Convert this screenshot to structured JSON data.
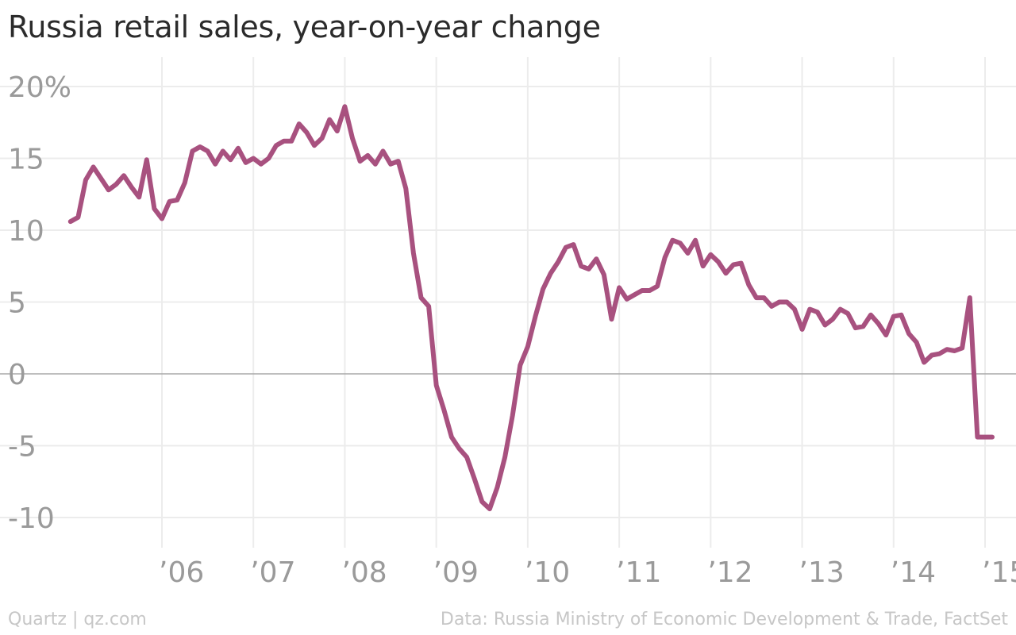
{
  "title": "Russia retail sales, year-on-year change",
  "footer": {
    "credit": "Quartz | qz.com",
    "source": "Data: Russia Ministry of Economic Development & Trade, FactSet"
  },
  "colors": {
    "line": "#a8517f",
    "grid": "#ececec",
    "zero_line": "#a8a8a8",
    "tick_text": "#9a9a9a"
  },
  "chart_data": {
    "type": "line",
    "title": "Russia retail sales, year-on-year change",
    "xlabel": "",
    "ylabel": "",
    "ylim": [
      -12,
      21
    ],
    "xlim": [
      "2005-01",
      "2015-03"
    ],
    "y_ticks": [
      {
        "value": 20,
        "label": "20%"
      },
      {
        "value": 15,
        "label": "15"
      },
      {
        "value": 10,
        "label": "10"
      },
      {
        "value": 5,
        "label": "5"
      },
      {
        "value": 0,
        "label": "0"
      },
      {
        "value": -5,
        "label": "-5"
      },
      {
        "value": -10,
        "label": "-10"
      }
    ],
    "x_ticks": [
      {
        "date": "2006-01",
        "label": "’06"
      },
      {
        "date": "2007-01",
        "label": "’07"
      },
      {
        "date": "2008-01",
        "label": "’08"
      },
      {
        "date": "2009-01",
        "label": "’09"
      },
      {
        "date": "2010-01",
        "label": "’10"
      },
      {
        "date": "2011-01",
        "label": "’11"
      },
      {
        "date": "2012-01",
        "label": "’12"
      },
      {
        "date": "2013-01",
        "label": "’13"
      },
      {
        "date": "2014-01",
        "label": "’14"
      },
      {
        "date": "2015-01",
        "label": "’15"
      }
    ],
    "grid": true,
    "legend": "none",
    "series": [
      {
        "x": [
          "2005-01",
          "2005-02",
          "2005-03",
          "2005-04",
          "2005-05",
          "2005-06",
          "2005-07",
          "2005-08",
          "2005-09",
          "2005-10",
          "2005-11",
          "2005-12",
          "2006-01",
          "2006-02",
          "2006-03",
          "2006-04",
          "2006-05",
          "2006-06",
          "2006-07",
          "2006-08",
          "2006-09",
          "2006-10",
          "2006-11",
          "2006-12",
          "2007-01",
          "2007-02",
          "2007-03",
          "2007-04",
          "2007-05",
          "2007-06",
          "2007-07",
          "2007-08",
          "2007-09",
          "2007-10",
          "2007-11",
          "2007-12",
          "2008-01",
          "2008-02",
          "2008-03",
          "2008-04",
          "2008-05",
          "2008-06",
          "2008-07",
          "2008-08",
          "2008-09",
          "2008-10",
          "2008-11",
          "2008-12",
          "2009-01",
          "2009-02",
          "2009-03",
          "2009-04",
          "2009-05",
          "2009-06",
          "2009-07",
          "2009-08",
          "2009-09",
          "2009-10",
          "2009-11",
          "2009-12",
          "2010-01",
          "2010-02",
          "2010-03",
          "2010-04",
          "2010-05",
          "2010-06",
          "2010-07",
          "2010-08",
          "2010-09",
          "2010-10",
          "2010-11",
          "2010-12",
          "2011-01",
          "2011-02",
          "2011-03",
          "2011-04",
          "2011-05",
          "2011-06",
          "2011-07",
          "2011-08",
          "2011-09",
          "2011-10",
          "2011-11",
          "2011-12",
          "2012-01",
          "2012-02",
          "2012-03",
          "2012-04",
          "2012-05",
          "2012-06",
          "2012-07",
          "2012-08",
          "2012-09",
          "2012-10",
          "2012-11",
          "2012-12",
          "2013-01",
          "2013-02",
          "2013-03",
          "2013-04",
          "2013-05",
          "2013-06",
          "2013-07",
          "2013-08",
          "2013-09",
          "2013-10",
          "2013-11",
          "2013-12",
          "2014-01",
          "2014-02",
          "2014-03",
          "2014-04",
          "2014-05",
          "2014-06",
          "2014-07",
          "2014-08",
          "2014-09",
          "2014-10",
          "2014-11",
          "2014-12",
          "2015-01"
        ],
        "values": [
          10.6,
          10.9,
          13.5,
          14.4,
          13.6,
          12.8,
          13.2,
          13.8,
          13.0,
          12.3,
          14.9,
          11.5,
          10.8,
          12.0,
          12.1,
          13.3,
          15.5,
          15.8,
          15.5,
          14.6,
          15.5,
          14.9,
          15.7,
          14.7,
          15.0,
          14.6,
          15.0,
          15.9,
          16.2,
          16.2,
          17.4,
          16.8,
          15.9,
          16.4,
          17.7,
          16.9,
          18.6,
          16.4,
          14.8,
          15.2,
          14.6,
          15.5,
          14.6,
          14.8,
          12.9,
          8.4,
          5.3,
          4.7,
          -0.8,
          -2.5,
          -4.4,
          -5.2,
          -5.8,
          -7.3,
          -8.9,
          -9.4,
          -7.9,
          -5.8,
          -2.9,
          0.6,
          1.9,
          4.0,
          5.9,
          7.0,
          7.8,
          8.8,
          9.0,
          7.5,
          7.3,
          8.0,
          6.9,
          3.8,
          6.0,
          5.2,
          5.5,
          5.8,
          5.8,
          6.1,
          8.1,
          9.3,
          9.1,
          8.4,
          9.3,
          7.5,
          8.3,
          7.8,
          7.0,
          7.6,
          7.7,
          6.2,
          5.3,
          5.3,
          4.7,
          5.0,
          5.0,
          4.5,
          3.1,
          4.5,
          4.3,
          3.4,
          3.8,
          4.5,
          4.2,
          3.2,
          3.3,
          4.1,
          3.5,
          2.7,
          4.0,
          4.1,
          2.8,
          2.2,
          0.8,
          1.3,
          1.4,
          1.7,
          1.6,
          1.8,
          5.3,
          -4.4,
          -4.4
        ]
      }
    ]
  }
}
